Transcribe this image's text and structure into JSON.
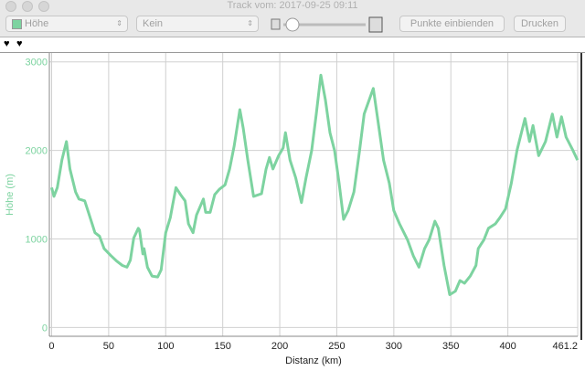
{
  "window": {
    "title": "Track vom: 2017-09-25 09:11"
  },
  "toolbar": {
    "layer_popup": "Höhe",
    "overlay_popup": "Kein",
    "show_points_button": "Punkte einbienden",
    "print_button": "Drucken"
  },
  "chart_data": {
    "type": "line",
    "x_label": "Distanz (km)",
    "y_label": "Höhe (m)",
    "color": "#7dd3a0",
    "x": [
      0,
      2,
      5,
      9,
      13,
      16,
      21,
      24,
      29,
      33,
      38,
      42,
      46,
      52,
      57,
      62,
      66,
      69,
      72,
      76,
      77,
      80,
      81,
      84,
      88,
      93,
      96,
      100,
      104,
      106,
      109,
      113,
      117,
      120,
      124,
      127,
      133,
      135,
      139,
      143,
      147,
      152,
      156,
      160,
      165,
      168,
      172,
      177,
      184,
      188,
      191,
      194,
      199,
      203,
      205,
      209,
      214,
      219,
      223,
      228,
      232,
      236,
      240,
      244,
      248,
      252,
      256,
      260,
      265,
      270,
      274,
      282,
      286,
      291,
      296,
      300,
      305,
      312,
      317,
      322,
      327,
      331,
      336,
      339,
      344,
      349,
      354,
      358,
      362,
      367,
      372,
      374,
      379,
      383,
      389,
      393,
      398,
      403,
      408,
      415,
      419,
      422,
      427,
      433,
      439,
      443,
      447,
      451,
      457,
      461
    ],
    "values": [
      1580,
      1480,
      1580,
      1890,
      2100,
      1790,
      1530,
      1450,
      1430,
      1270,
      1070,
      1030,
      890,
      810,
      750,
      700,
      680,
      760,
      1010,
      1120,
      1100,
      830,
      890,
      680,
      580,
      570,
      650,
      1070,
      1240,
      1380,
      1580,
      1500,
      1430,
      1170,
      1070,
      1270,
      1450,
      1300,
      1300,
      1500,
      1560,
      1610,
      1790,
      2050,
      2460,
      2250,
      1890,
      1480,
      1510,
      1790,
      1920,
      1790,
      1940,
      2030,
      2200,
      1890,
      1690,
      1410,
      1690,
      2000,
      2410,
      2850,
      2570,
      2200,
      2000,
      1630,
      1220,
      1320,
      1530,
      2000,
      2410,
      2700,
      2340,
      1890,
      1630,
      1320,
      1170,
      990,
      810,
      680,
      890,
      990,
      1200,
      1120,
      700,
      370,
      410,
      530,
      500,
      580,
      700,
      890,
      990,
      1120,
      1170,
      1240,
      1340,
      1630,
      2000,
      2360,
      2100,
      2280,
      1940,
      2100,
      2410,
      2150,
      2380,
      2150,
      2000,
      1890
    ],
    "xlim": [
      -2,
      461.2
    ],
    "ylim": [
      -100,
      3100
    ],
    "xticks": [
      0,
      50,
      100,
      150,
      200,
      250,
      300,
      350,
      400,
      461.2
    ],
    "yticks": [
      0,
      1000,
      2000,
      3000
    ],
    "grid": true
  }
}
